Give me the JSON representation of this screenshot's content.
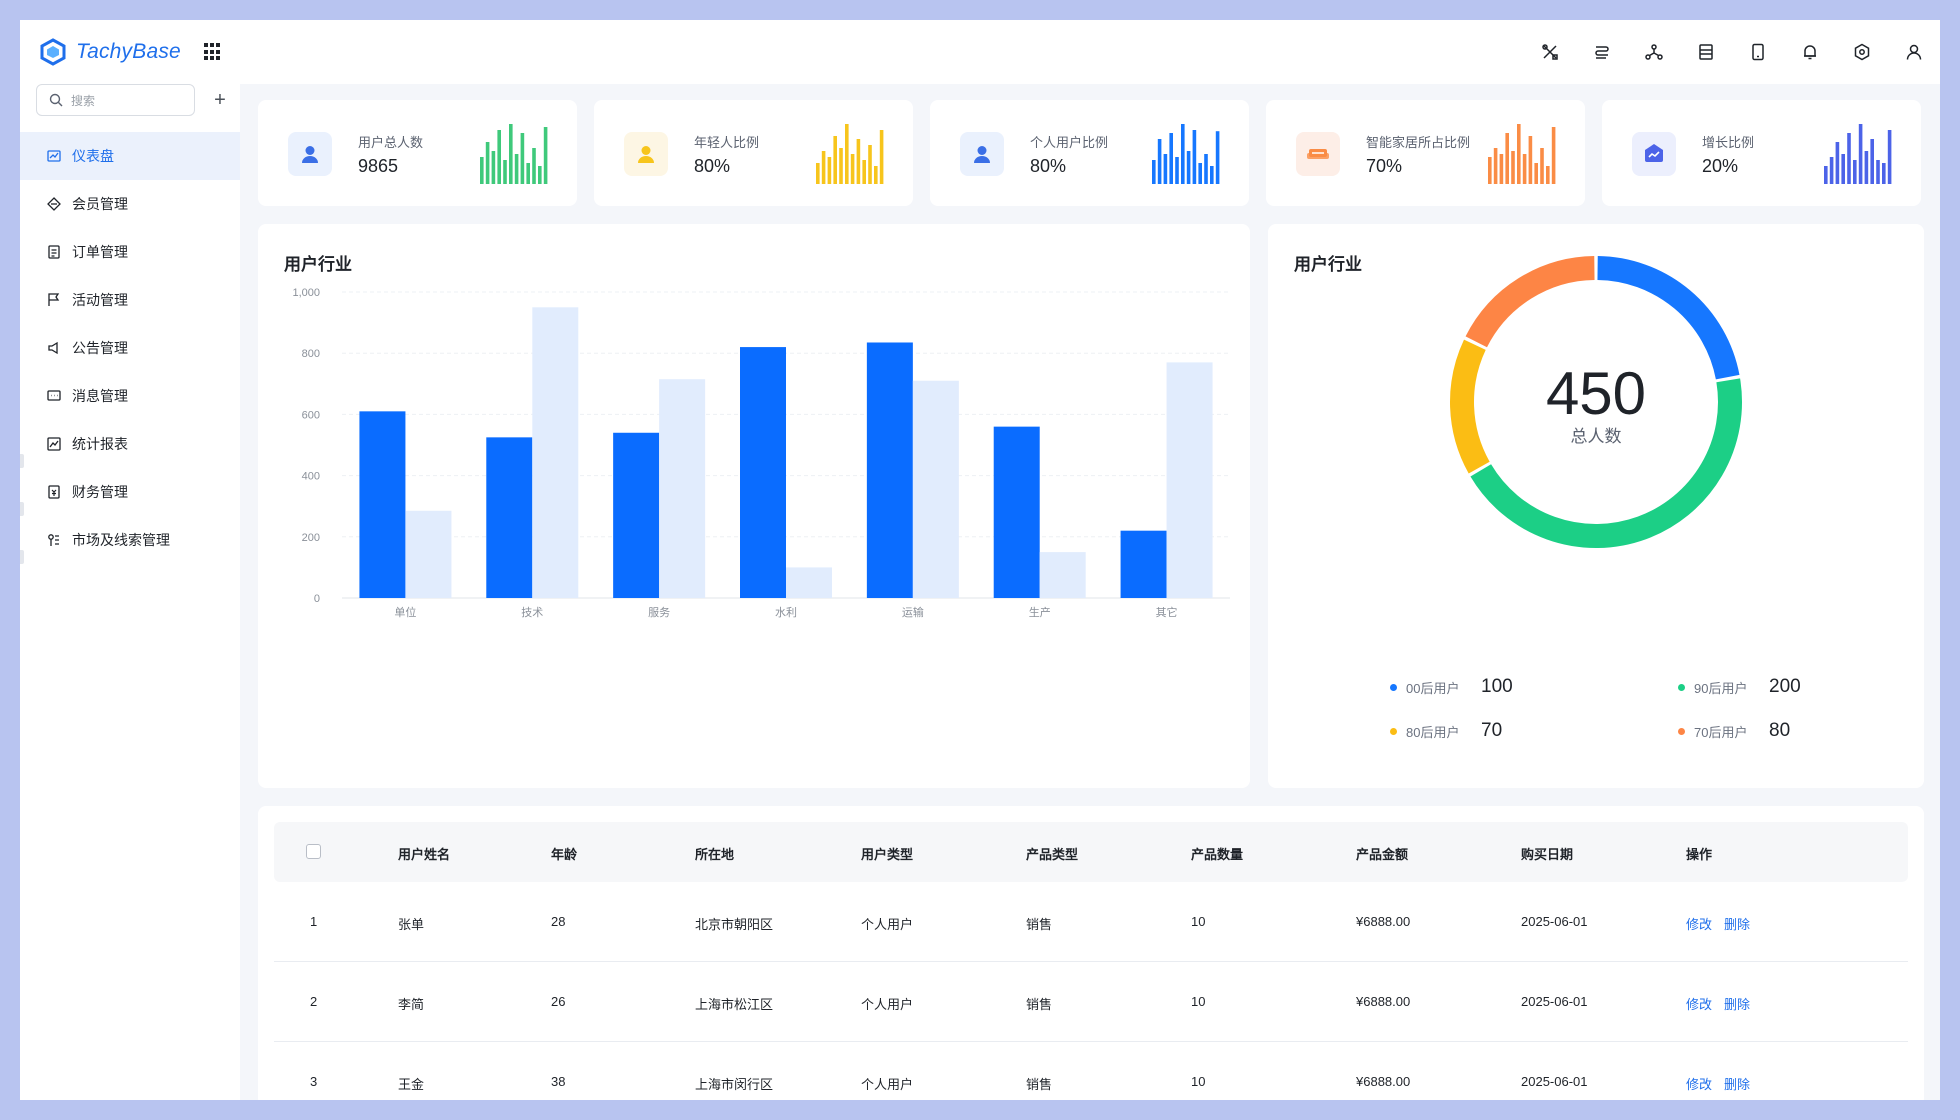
{
  "app": {
    "brand": "TachyBase",
    "brand_color": "#1f6feb"
  },
  "header": {
    "icons": [
      "tools-icon",
      "database-icon",
      "network-icon",
      "table-icon",
      "mobile-icon",
      "bell-icon",
      "settings-icon",
      "user-icon"
    ]
  },
  "sidebar": {
    "search_placeholder": "搜索",
    "add_label": "+",
    "items": [
      {
        "label": "仪表盘",
        "icon": "dashboard-icon",
        "active": true
      },
      {
        "label": "会员管理",
        "icon": "diamond-icon"
      },
      {
        "label": "订单管理",
        "icon": "clipboard-icon"
      },
      {
        "label": "活动管理",
        "icon": "flag-icon"
      },
      {
        "label": "公告管理",
        "icon": "megaphone-icon"
      },
      {
        "label": "消息管理",
        "icon": "message-icon"
      },
      {
        "label": "统计报表",
        "icon": "chart-icon"
      },
      {
        "label": "财务管理",
        "icon": "finance-icon"
      },
      {
        "label": "市场及线索管理",
        "icon": "market-icon"
      }
    ]
  },
  "stats": [
    {
      "label": "用户总人数",
      "value": "9865",
      "color": "#3fc97b",
      "icon_bg": "#eaf1fd",
      "icon": "user-icon",
      "bars": [
        0.45,
        0.7,
        0.55,
        0.9,
        0.4,
        1.0,
        0.5,
        0.85,
        0.35,
        0.6,
        0.3,
        0.95
      ]
    },
    {
      "label": "年轻人比例",
      "value": "80%",
      "color": "#f7c51c",
      "icon_bg": "#fdf6e4",
      "icon": "user-icon",
      "bars": [
        0.35,
        0.55,
        0.45,
        0.8,
        0.6,
        1.0,
        0.5,
        0.75,
        0.4,
        0.65,
        0.3,
        0.9
      ]
    },
    {
      "label": "个人用户比例",
      "value": "80%",
      "color": "#1677ff",
      "icon_bg": "#eaf1fd",
      "icon": "user-icon",
      "bars": [
        0.4,
        0.75,
        0.5,
        0.85,
        0.45,
        1.0,
        0.55,
        0.9,
        0.35,
        0.5,
        0.3,
        0.88
      ]
    },
    {
      "label": "智能家居所占比例",
      "value": "70%",
      "color": "#fa8c45",
      "icon_bg": "#fdeee7",
      "icon": "sofa-icon",
      "bars": [
        0.45,
        0.6,
        0.5,
        0.85,
        0.55,
        1.0,
        0.5,
        0.8,
        0.35,
        0.6,
        0.3,
        0.95
      ]
    },
    {
      "label": "增长比例",
      "value": "20%",
      "color": "#4c63e8",
      "icon_bg": "#eceffd",
      "icon": "growth-icon",
      "bars": [
        0.3,
        0.45,
        0.7,
        0.5,
        0.85,
        0.4,
        1.0,
        0.55,
        0.75,
        0.4,
        0.35,
        0.9
      ]
    }
  ],
  "bar_chart": {
    "title": "用户行业"
  },
  "donut_chart": {
    "title": "用户行业",
    "center_value": "450",
    "center_label": "总人数"
  },
  "chart_data": [
    {
      "type": "bar",
      "title": "用户行业",
      "categories": [
        "单位",
        "技术",
        "服务",
        "水利",
        "运输",
        "生产",
        "其它"
      ],
      "series": [
        {
          "values": [
            610,
            525,
            540,
            820,
            835,
            560,
            220
          ],
          "color": "#0a6cff"
        },
        {
          "values": [
            285,
            950,
            715,
            100,
            710,
            150,
            770
          ],
          "color": "#e1ecfd"
        }
      ],
      "ylim": [
        0,
        1000
      ],
      "yticks": [
        0,
        200,
        400,
        600,
        800,
        1000
      ],
      "ytick_labels": [
        "0",
        "200",
        "400",
        "600",
        "800",
        "1,000"
      ],
      "grid": true
    },
    {
      "type": "pie",
      "title": "用户行业",
      "categories": [
        "00后用户",
        "90后用户",
        "80后用户",
        "70后用户"
      ],
      "values": [
        100,
        200,
        70,
        80
      ],
      "colors": [
        "#1677ff",
        "#1ccf86",
        "#fbbd14",
        "#fd8545"
      ],
      "value_labels": [
        "100",
        "200",
        "70",
        "80"
      ]
    }
  ],
  "table": {
    "columns": [
      "用户姓名",
      "年龄",
      "所在地",
      "用户类型",
      "产品类型",
      "产品数量",
      "产品金额",
      "购买日期",
      "操作"
    ],
    "rows": [
      {
        "index": "1",
        "name": "张单",
        "age": "28",
        "location": "北京市朝阳区",
        "user_type": "个人用户",
        "product_type": "销售",
        "qty": "10",
        "amount": "¥6888.00",
        "date": "2025-06-01",
        "edit": "修改",
        "delete": "删除"
      },
      {
        "index": "2",
        "name": "李简",
        "age": "26",
        "location": "上海市松江区",
        "user_type": "个人用户",
        "product_type": "销售",
        "qty": "10",
        "amount": "¥6888.00",
        "date": "2025-06-01",
        "edit": "修改",
        "delete": "删除"
      },
      {
        "index": "3",
        "name": "王金",
        "age": "38",
        "location": "上海市闵行区",
        "user_type": "个人用户",
        "product_type": "销售",
        "qty": "10",
        "amount": "¥6888.00",
        "date": "2025-06-01",
        "edit": "修改",
        "delete": "删除"
      }
    ]
  }
}
